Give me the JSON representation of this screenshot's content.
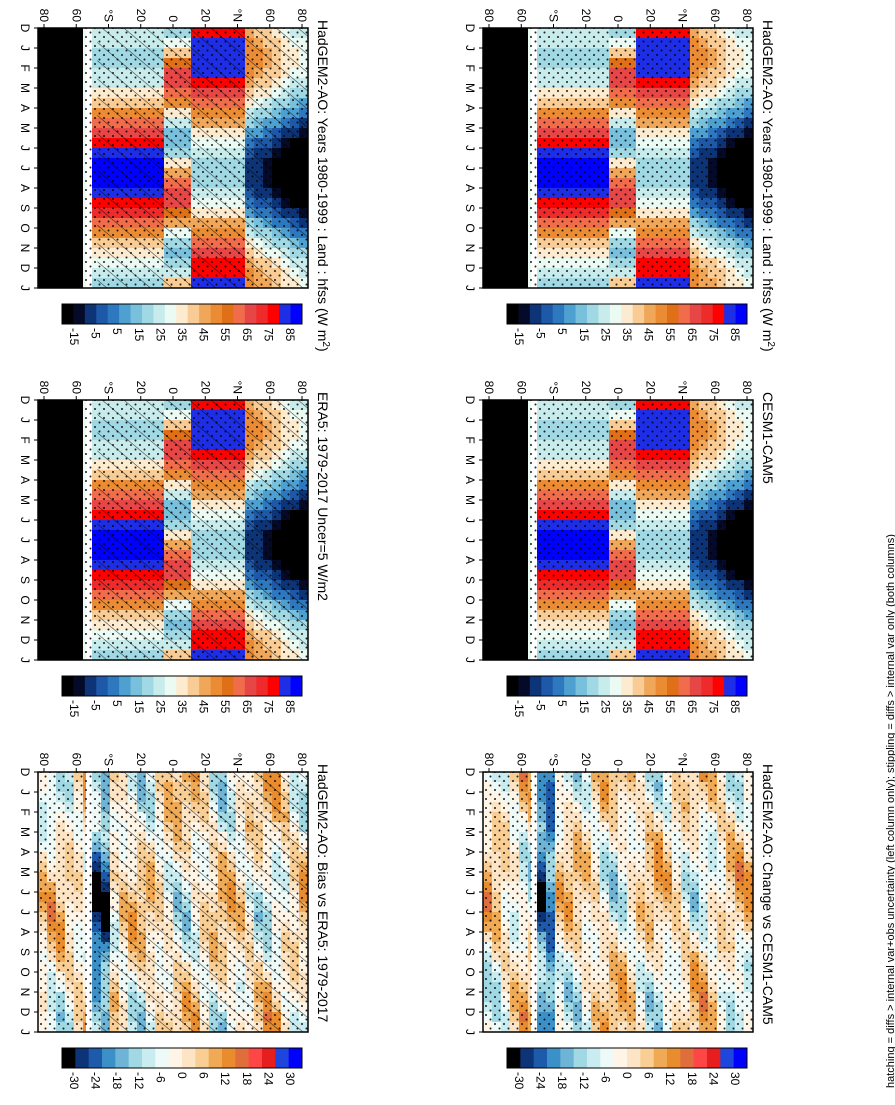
{
  "chart_data": [
    {
      "type": "heatmap",
      "title": "HadGEM2-AO: Years 1980-1999 : Land : hfss (W m",
      "title_sup": "2",
      "title_end": ")",
      "months": [
        "D",
        "J",
        "F",
        "M",
        "A",
        "M",
        "J",
        "J",
        "A",
        "S",
        "O",
        "N",
        "D",
        "J"
      ],
      "lat_ticks": [
        "80",
        "60",
        "°N",
        "20",
        "0",
        "20",
        "°S",
        "60",
        "80"
      ],
      "colorbar_ticks": [
        "85",
        "75",
        "65",
        "55",
        "45",
        "35",
        "25",
        "15",
        "5",
        "-5",
        "-15"
      ],
      "hatching": true,
      "stippling": true
    },
    {
      "type": "heatmap",
      "title": "HadGEM2-AO: Years 1980-1999 : Land : hfss (W m",
      "title_sup": "2",
      "title_end": ")",
      "months": [
        "D",
        "J",
        "F",
        "M",
        "A",
        "M",
        "J",
        "J",
        "A",
        "S",
        "O",
        "N",
        "D",
        "J"
      ],
      "lat_ticks": [
        "80",
        "60",
        "°N",
        "20",
        "0",
        "20",
        "°S",
        "60",
        "80"
      ],
      "colorbar_ticks": [
        "85",
        "75",
        "65",
        "55",
        "45",
        "35",
        "25",
        "15",
        "5",
        "-5",
        "-15"
      ],
      "hatching": false,
      "stippling": true
    },
    {
      "type": "heatmap",
      "title": "ERA5: 1979-2017 Uncer=5 W/m2",
      "months": [
        "D",
        "J",
        "F",
        "M",
        "A",
        "M",
        "J",
        "J",
        "A",
        "S",
        "O",
        "N",
        "D",
        "J"
      ],
      "lat_ticks": [
        "80",
        "60",
        "°N",
        "20",
        "0",
        "20",
        "°S",
        "60",
        "80"
      ],
      "colorbar_ticks": [
        "85",
        "75",
        "65",
        "55",
        "45",
        "35",
        "25",
        "15",
        "5",
        "-5",
        "-15"
      ],
      "hatching": true,
      "stippling": true
    },
    {
      "type": "heatmap",
      "title": "CESM1-CAM5",
      "months": [
        "D",
        "J",
        "F",
        "M",
        "A",
        "M",
        "J",
        "J",
        "A",
        "S",
        "O",
        "N",
        "D",
        "J"
      ],
      "lat_ticks": [
        "80",
        "60",
        "°N",
        "20",
        "0",
        "20",
        "°S",
        "60",
        "80"
      ],
      "colorbar_ticks": [
        "85",
        "75",
        "65",
        "55",
        "45",
        "35",
        "25",
        "15",
        "5",
        "-5",
        "-15"
      ],
      "hatching": false,
      "stippling": true
    },
    {
      "type": "heatmap",
      "title": "HadGEM2-AO: Bias vs ERA5: 1979-2017",
      "months": [
        "D",
        "J",
        "F",
        "M",
        "A",
        "M",
        "J",
        "J",
        "A",
        "S",
        "O",
        "N",
        "D",
        "J"
      ],
      "lat_ticks": [
        "80",
        "60",
        "°N",
        "20",
        "0",
        "20",
        "°S",
        "60",
        "80"
      ],
      "colorbar_ticks": [
        "30",
        "24",
        "18",
        "12",
        "6",
        "0",
        "-6",
        "-12",
        "-18",
        "-24",
        "-30"
      ],
      "hatching": true,
      "stippling": true
    },
    {
      "type": "heatmap",
      "title": "HadGEM2-AO: Change vs CESM1-CAM5",
      "months": [
        "D",
        "J",
        "F",
        "M",
        "A",
        "M",
        "J",
        "J",
        "A",
        "S",
        "O",
        "N",
        "D",
        "J"
      ],
      "lat_ticks": [
        "80",
        "60",
        "°N",
        "20",
        "0",
        "20",
        "°S",
        "60",
        "80"
      ],
      "colorbar_ticks": [
        "30",
        "24",
        "18",
        "12",
        "6",
        "0",
        "-6",
        "-12",
        "-18",
        "-24",
        "-30"
      ],
      "hatching": false,
      "stippling": true
    }
  ],
  "footnote": "hatching = diffs > internal var+obs uncertainty (left column only); stippling = diffs > internal var only (both columns)",
  "palette": {
    "colorbar_swatches": [
      "#0000ff",
      "#1e2ee6",
      "#ff0000",
      "#ee2a2a",
      "#e64646",
      "#f06c4a",
      "#e07018",
      "#eb8c35",
      "#f0a75a",
      "#f8cc94",
      "#fcebcf",
      "#ecfaf4",
      "#c8ecec",
      "#a0d8e4",
      "#78c0dc",
      "#4ea0d0",
      "#2e78c0",
      "#1e58a8",
      "#0e3478",
      "#050a28",
      "#000000"
    ],
    "diff_swatches": [
      "#0000ff",
      "#1e46dc",
      "#e61e1e",
      "#ff4646",
      "#e06e3c",
      "#e88c2e",
      "#f0aa55",
      "#f8ce94",
      "#fce4c4",
      "#fff5e6",
      "#eefaf8",
      "#c8ecf0",
      "#a0d8e4",
      "#6eb4d6",
      "#3c90c8",
      "#1e5aaa",
      "#0e3478",
      "#000000"
    ]
  }
}
